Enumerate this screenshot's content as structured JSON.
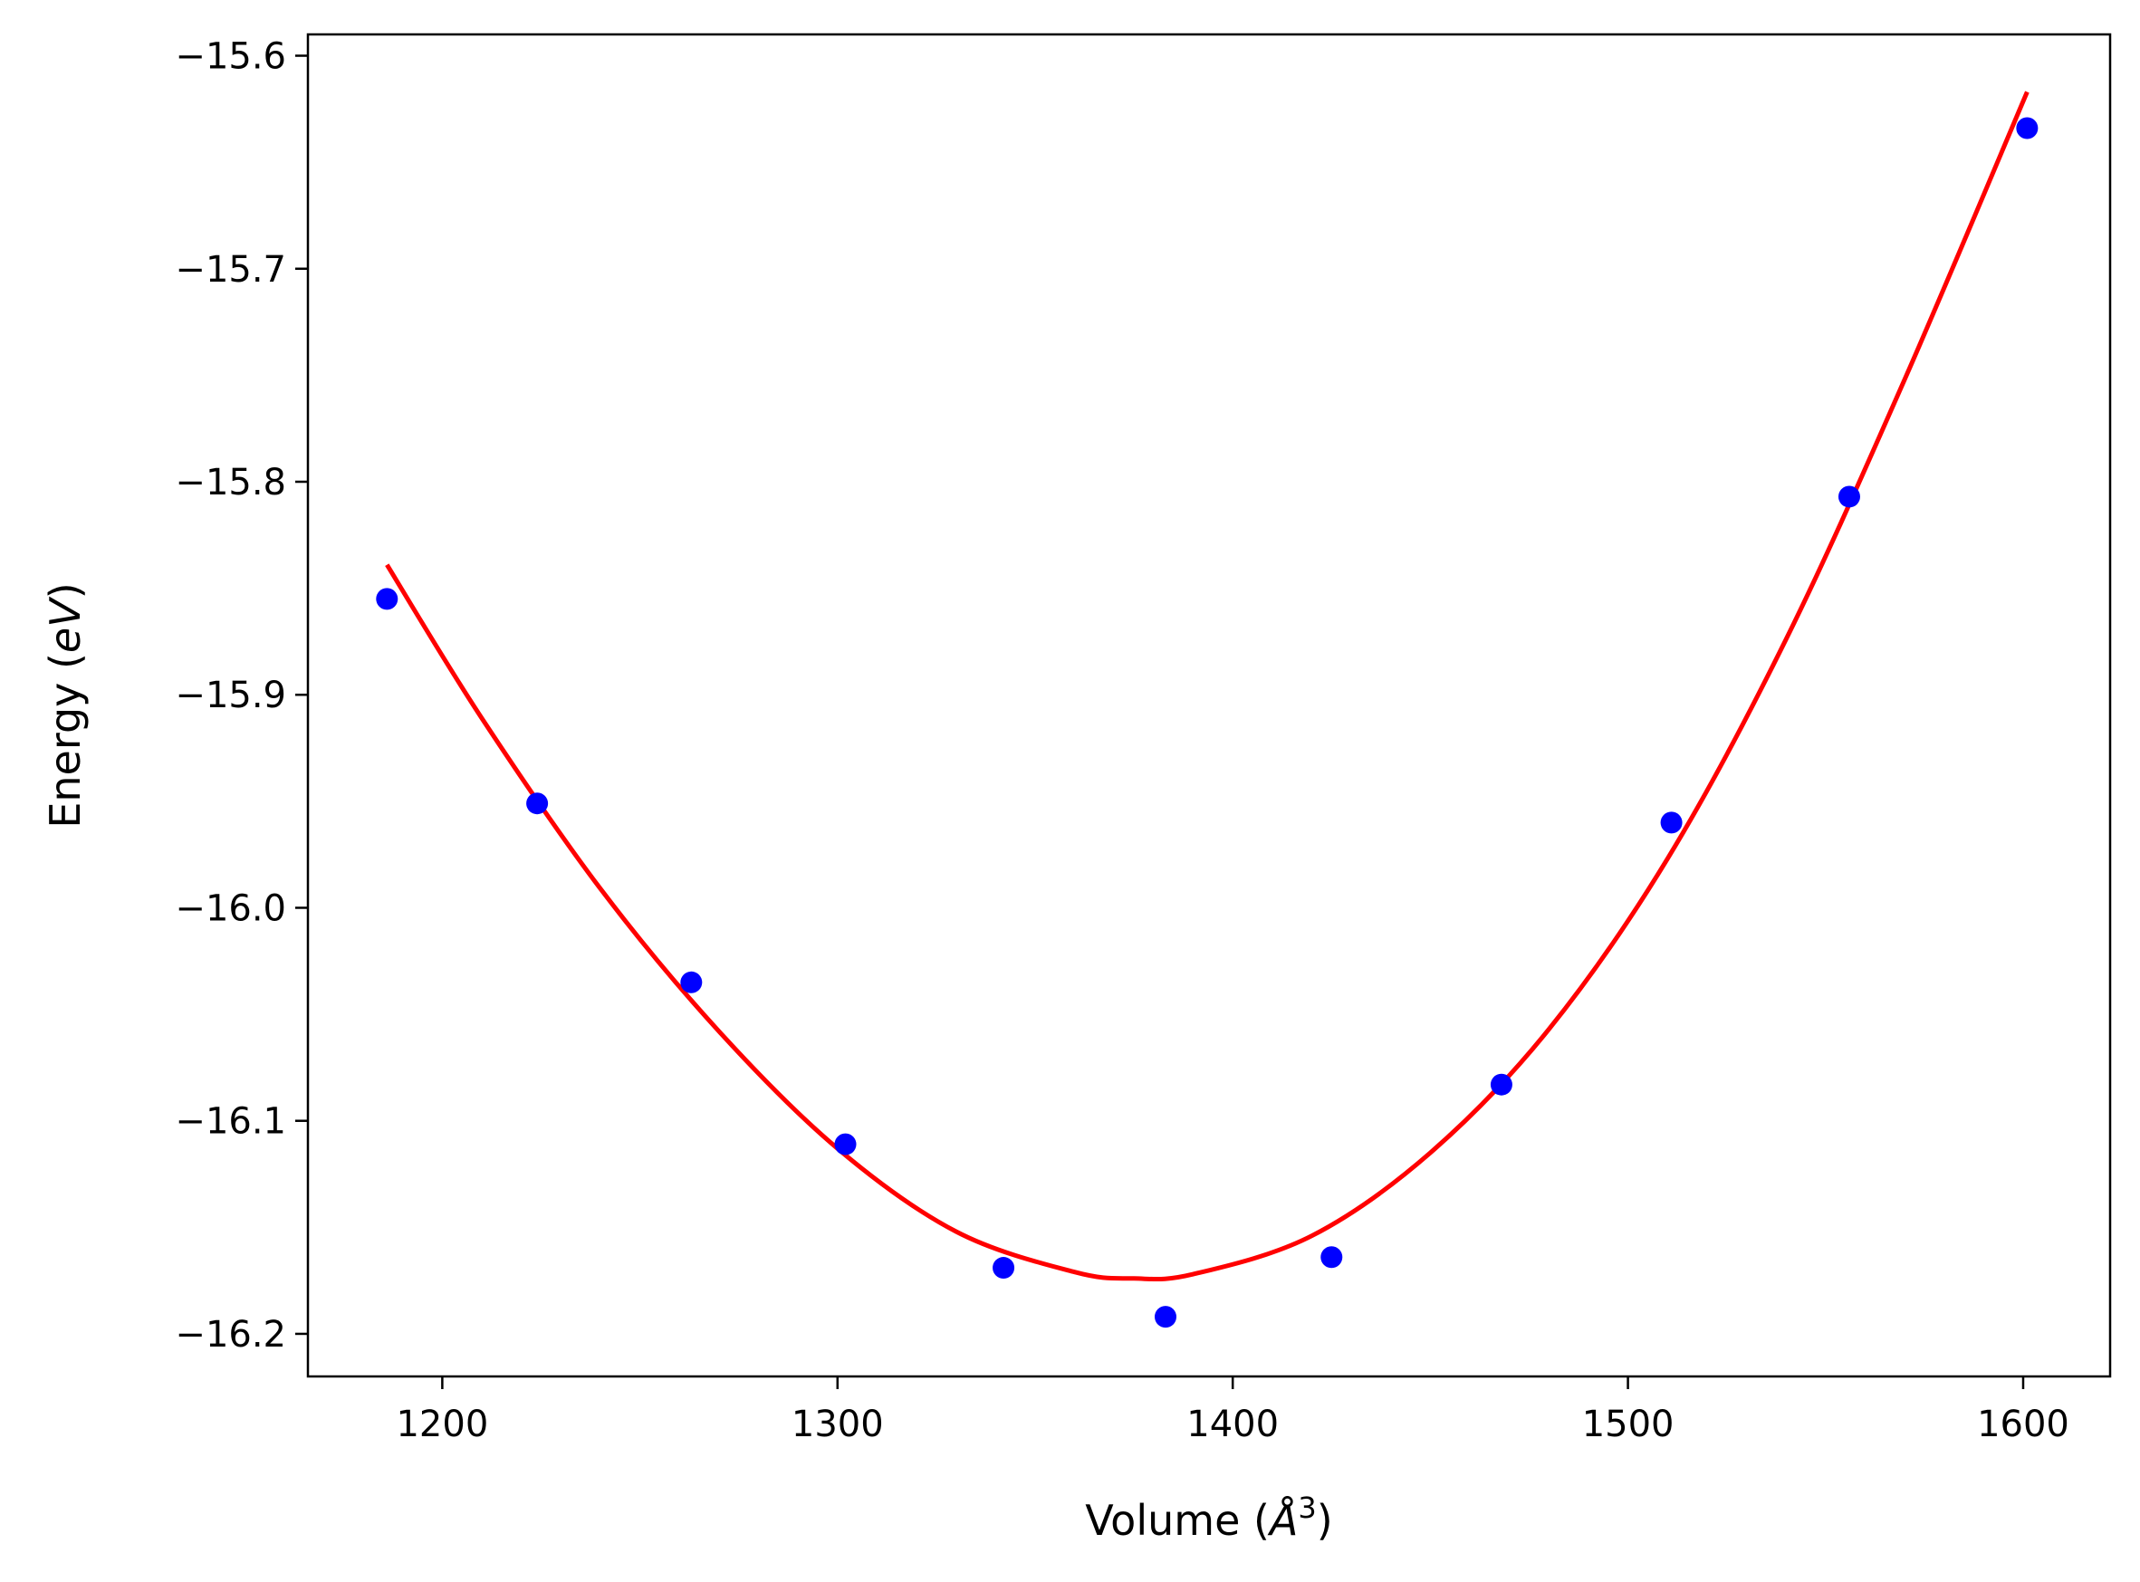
{
  "chart_data": {
    "type": "scatter",
    "xlabel": {
      "pre": "Volume (",
      "sym": "Å",
      "sup": "3",
      "post": ")"
    },
    "ylabel": {
      "pre": "Energy (",
      "sym": "eV",
      "post": ")"
    },
    "xlim": [
      1166,
      1622
    ],
    "ylim": [
      -16.22,
      -15.59
    ],
    "xticks": [
      1200,
      1300,
      1400,
      1500,
      1600
    ],
    "xtick_labels": [
      "1200",
      "1300",
      "1400",
      "1500",
      "1600"
    ],
    "yticks": [
      -15.6,
      -15.7,
      -15.8,
      -15.9,
      -16.0,
      -16.1,
      -16.2
    ],
    "ytick_labels": [
      "−15.6",
      "−15.7",
      "−15.8",
      "−15.9",
      "−16.0",
      "−16.1",
      "−16.2"
    ],
    "grid": false,
    "series": [
      {
        "kind": "points",
        "color": "#0000ff",
        "x": [
          1186,
          1224,
          1263,
          1302,
          1342,
          1383,
          1425,
          1468,
          1511,
          1556,
          1601
        ],
        "y": [
          -15.855,
          -15.951,
          -16.035,
          -16.111,
          -16.169,
          -16.192,
          -16.164,
          -16.083,
          -15.96,
          -15.807,
          -15.634
        ]
      },
      {
        "kind": "fit_curve",
        "color": "#ff0000",
        "x": [
          1186,
          1210,
          1240,
          1270,
          1300,
          1330,
          1360,
          1375,
          1390,
          1420,
          1450,
          1480,
          1510,
          1540,
          1570,
          1601
        ],
        "y": [
          -15.839,
          -15.911,
          -15.991,
          -16.058,
          -16.113,
          -16.152,
          -16.171,
          -16.174,
          -16.172,
          -16.154,
          -16.115,
          -16.057,
          -15.977,
          -15.874,
          -15.752,
          -15.617
        ]
      }
    ]
  }
}
